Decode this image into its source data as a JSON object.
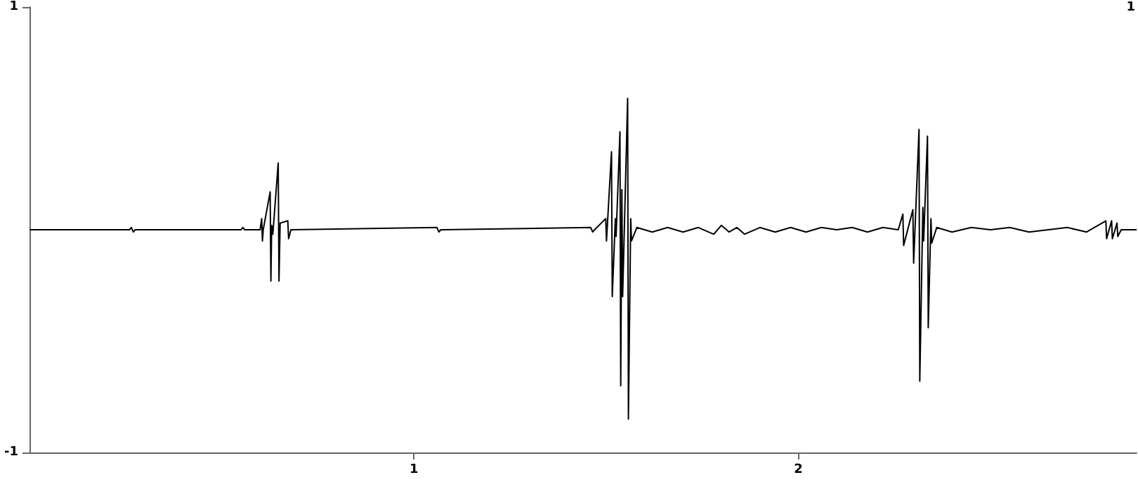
{
  "chart_data": {
    "type": "line",
    "xlim": [
      0,
      2.88
    ],
    "xticks": [
      1,
      2
    ],
    "ylim": [
      -1,
      1
    ],
    "yticks": [
      -1,
      1
    ],
    "annotations": [
      "1"
    ],
    "grid": false,
    "marker": "none",
    "line_style": "solid",
    "series": [
      {
        "color": "#000000",
        "x": [
          0,
          0.26,
          0.265,
          0.27,
          0.275,
          0.55,
          0.555,
          0.56,
          0.6,
          0.604,
          0.606,
          0.608,
          0.626,
          0.628,
          0.63,
          0.633,
          0.647,
          0.649,
          0.652,
          0.672,
          0.674,
          0.68,
          1.06,
          1.065,
          1.07,
          1.46,
          1.465,
          1.47,
          1.499,
          1.501,
          1.514,
          1.516,
          1.524,
          1.526,
          1.536,
          1.538,
          1.541,
          1.543,
          1.556,
          1.558,
          1.564,
          1.566,
          1.58,
          1.62,
          1.66,
          1.7,
          1.74,
          1.78,
          1.8,
          1.82,
          1.84,
          1.86,
          1.9,
          1.94,
          1.98,
          2.02,
          2.06,
          2.1,
          2.14,
          2.18,
          2.22,
          2.26,
          2.272,
          2.274,
          2.298,
          2.3,
          2.314,
          2.316,
          2.324,
          2.326,
          2.336,
          2.338,
          2.345,
          2.347,
          2.36,
          2.4,
          2.45,
          2.5,
          2.55,
          2.6,
          2.65,
          2.7,
          2.75,
          2.8,
          2.802,
          2.815,
          2.817,
          2.829,
          2.831,
          2.84,
          2.88
        ],
        "values": [
          0,
          0,
          0.01,
          -0.01,
          0,
          0,
          0.01,
          0,
          0,
          0.05,
          -0.05,
          0,
          0.17,
          -0.23,
          0.02,
          -0.02,
          0.3,
          -0.23,
          0.03,
          0.04,
          -0.04,
          0,
          0.01,
          -0.01,
          0,
          0.01,
          -0.01,
          0,
          0.05,
          -0.05,
          0.35,
          -0.3,
          0.05,
          -0.03,
          0.44,
          -0.7,
          0.18,
          -0.3,
          0.59,
          -0.85,
          0.05,
          -0.05,
          0.01,
          -0.01,
          0.01,
          -0.01,
          0.01,
          -0.02,
          0.02,
          -0.01,
          0.01,
          -0.02,
          0.01,
          -0.01,
          0.01,
          -0.01,
          0.01,
          0,
          0.01,
          -0.01,
          0.01,
          0,
          0.07,
          -0.07,
          0.09,
          -0.15,
          0.45,
          -0.68,
          0.1,
          -0.05,
          0.42,
          -0.44,
          0.05,
          -0.06,
          0.01,
          -0.01,
          0.01,
          0,
          0.01,
          -0.01,
          0,
          0.01,
          -0.01,
          0.04,
          -0.04,
          0.04,
          -0.04,
          0.03,
          -0.03,
          0,
          0
        ]
      }
    ]
  }
}
